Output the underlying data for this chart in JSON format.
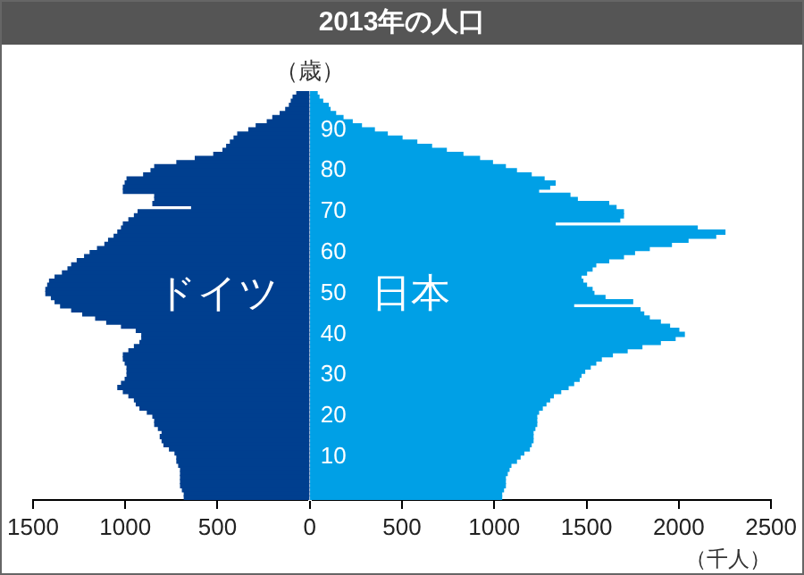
{
  "chart_data": {
    "type": "bar",
    "orientation": "horizontal",
    "stacked": true,
    "title": "2013年の人口",
    "ylabel": "（歳）",
    "xlabel": "（千人）",
    "categories": [
      null,
      null,
      null,
      null,
      null,
      null,
      null,
      null,
      null,
      "90",
      null,
      null,
      null,
      null,
      null,
      null,
      null,
      null,
      null,
      "80",
      null,
      null,
      null,
      null,
      null,
      null,
      null,
      null,
      null,
      "70",
      null,
      null,
      null,
      null,
      null,
      null,
      null,
      null,
      null,
      "60",
      null,
      null,
      null,
      null,
      null,
      null,
      null,
      null,
      null,
      "50",
      null,
      null,
      null,
      null,
      null,
      null,
      null,
      null,
      null,
      "40",
      null,
      null,
      null,
      null,
      null,
      null,
      null,
      null,
      null,
      "30",
      null,
      null,
      null,
      null,
      null,
      null,
      null,
      null,
      null,
      "20",
      null,
      null,
      null,
      null,
      null,
      null,
      null,
      null,
      null,
      "10",
      null,
      null,
      null,
      null,
      null,
      null,
      null,
      null,
      null,
      null
    ],
    "series": [
      {
        "name": "ドイツ",
        "color": "#003f8f",
        "values": [
          -70,
          -90,
          -100,
          -110,
          -130,
          -160,
          -200,
          -230,
          -290,
          -330,
          -390,
          -410,
          -430,
          -450,
          -470,
          -520,
          -620,
          -720,
          -840,
          -860,
          -900,
          -990,
          -1000,
          -1010,
          -1010,
          -840,
          -840,
          -850,
          -640,
          -930,
          -950,
          -980,
          -1010,
          -1020,
          -1040,
          -1060,
          -1090,
          -1110,
          -1150,
          -1190,
          -1220,
          -1260,
          -1290,
          -1310,
          -1340,
          -1380,
          -1410,
          -1420,
          -1430,
          -1430,
          -1400,
          -1380,
          -1350,
          -1290,
          -1230,
          -1160,
          -1100,
          -1020,
          -940,
          -910,
          -910,
          -920,
          -950,
          -980,
          -1010,
          -1010,
          -1000,
          -990,
          -990,
          -990,
          -1000,
          -1020,
          -1040,
          -1010,
          -980,
          -950,
          -940,
          -920,
          -880,
          -850,
          -840,
          -840,
          -820,
          -800,
          -810,
          -800,
          -790,
          -760,
          -730,
          -720,
          -720,
          -710,
          -700,
          -700,
          -700,
          -700,
          -700,
          -690,
          -680,
          -680
        ]
      },
      {
        "name": "日本",
        "color": "#00a0e6",
        "values": [
          40,
          50,
          70,
          100,
          110,
          140,
          180,
          230,
          280,
          350,
          420,
          500,
          580,
          660,
          740,
          830,
          920,
          990,
          1060,
          1120,
          1200,
          1270,
          1330,
          1300,
          1240,
          1410,
          1450,
          1620,
          1660,
          1700,
          1700,
          1680,
          1330,
          2100,
          2250,
          2200,
          2050,
          1960,
          1840,
          1760,
          1700,
          1620,
          1550,
          1530,
          1500,
          1470,
          1480,
          1500,
          1530,
          1540,
          1600,
          1750,
          1430,
          1790,
          1810,
          1840,
          1900,
          1950,
          2000,
          2030,
          1980,
          1900,
          1800,
          1720,
          1640,
          1580,
          1550,
          1520,
          1490,
          1470,
          1460,
          1430,
          1400,
          1360,
          1320,
          1300,
          1280,
          1260,
          1240,
          1230,
          1230,
          1230,
          1220,
          1210,
          1210,
          1210,
          1200,
          1190,
          1160,
          1140,
          1120,
          1090,
          1080,
          1070,
          1060,
          1060,
          1060,
          1050,
          1040,
          1040
        ]
      }
    ],
    "xlim": [
      -1500,
      2500
    ],
    "xticks": [
      {
        "value": -1500,
        "label": "1500"
      },
      {
        "value": -1000,
        "label": "1000"
      },
      {
        "value": -500,
        "label": "500"
      },
      0,
      500,
      1000,
      1500,
      2000,
      2500
    ]
  }
}
